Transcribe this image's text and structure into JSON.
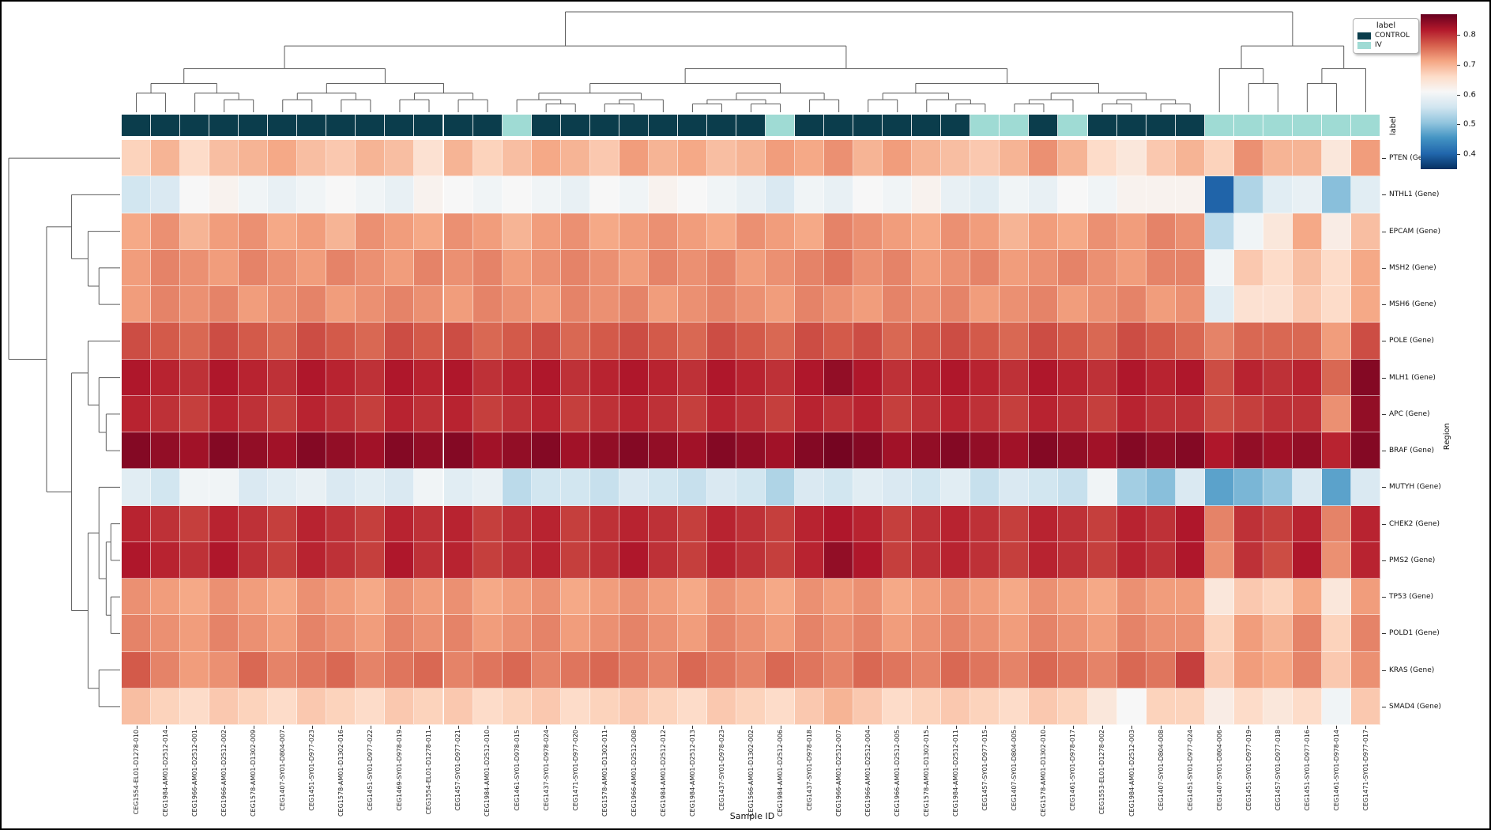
{
  "axes": {
    "x_label": "Sample ID",
    "y_label": "Region",
    "col_strip_label": "label"
  },
  "legend": {
    "title": "label",
    "entries": [
      {
        "label": "CONTROL",
        "color": "#0b3d4c"
      },
      {
        "label": "IV",
        "color": "#9fdbd4"
      }
    ]
  },
  "colorbar": {
    "colormap": "RdBu_r",
    "vmin": 0.35,
    "vmax": 0.87,
    "tick_values": [
      0.8,
      0.7,
      0.6,
      0.5,
      0.4
    ],
    "tick_labels": [
      "0.8",
      "0.7",
      "0.6",
      "0.5",
      "0.4"
    ]
  },
  "chart_data": {
    "type": "heatmap",
    "title": "",
    "xlabel": "Sample ID",
    "ylabel": "Region",
    "colormap": "RdBu_r",
    "vmin": 0.35,
    "vmax": 0.87,
    "group_colors": {
      "CONTROL": "#0b3d4c",
      "IV": "#9fdbd4"
    },
    "x_categories": [
      "CEG1554-EL01-D1278-010",
      "CEG1984-AM01-D2512-014",
      "CEG1966-AM01-D2512-001",
      "CEG1966-AM01-D2512-002",
      "CEG1578-AM01-D1302-009",
      "CEG1407-SY01-D804-007",
      "CEG1451-SY01-D977-023",
      "CEG1578-AM01-D1302-016",
      "CEG1451-SY01-D977-022",
      "CEG1469-SY01-D978-019",
      "CEG1554-EL01-D1278-011",
      "CEG1457-SY01-D977-021",
      "CEG1984-AM01-D2512-010",
      "CEG1461-SY01-D978-015",
      "CEG1437-SY01-D978-024",
      "CEG1471-SY01-D977-020",
      "CEG1578-AM01-D1302-011",
      "CEG1966-AM01-D2512-008",
      "CEG1984-AM01-D2512-012",
      "CEG1984-AM01-D2512-013",
      "CEG1437-SY01-D978-023",
      "CEG1566-AM01-D1302-002",
      "CEG1984-AM01-D2512-006",
      "CEG1437-SY01-D978-018",
      "CEG1966-AM01-D2512-007",
      "CEG1966-AM01-D2512-004",
      "CEG1966-AM01-D2512-005",
      "CEG1578-AM01-D1302-015",
      "CEG1984-AM01-D2512-011",
      "CEG1457-SY01-D977-015",
      "CEG1407-SY01-D804-005",
      "CEG1578-AM01-D1302-010",
      "CEG1461-SY01-D978-017",
      "CEG1553-EL01-D1278-002",
      "CEG1984-AM01-D2512-003",
      "CEG1407-SY01-D804-008",
      "CEG1451-SY01-D977-024",
      "CEG1407-SY01-D804-006",
      "CEG1451-SY01-D977-019",
      "CEG1457-SY01-D977-018",
      "CEG1451-SY01-D977-016",
      "CEG1461-SY01-D978-014",
      "CEG1471-SY01-D977-017"
    ],
    "y_categories": [
      "PTEN (Gene)",
      "NTHL1 (Gene)",
      "EPCAM (Gene)",
      "MSH2 (Gene)",
      "MSH6 (Gene)",
      "POLE (Gene)",
      "MLH1 (Gene)",
      "APC (Gene)",
      "BRAF (Gene)",
      "MUTYH (Gene)",
      "CHEK2 (Gene)",
      "PMS2 (Gene)",
      "TP53 (Gene)",
      "POLD1 (Gene)",
      "KRAS (Gene)",
      "SMAD4 (Gene)"
    ],
    "col_groups": [
      "CONTROL",
      "CONTROL",
      "CONTROL",
      "CONTROL",
      "CONTROL",
      "CONTROL",
      "CONTROL",
      "CONTROL",
      "CONTROL",
      "CONTROL",
      "CONTROL",
      "CONTROL",
      "CONTROL",
      "IV",
      "CONTROL",
      "CONTROL",
      "CONTROL",
      "CONTROL",
      "CONTROL",
      "CONTROL",
      "CONTROL",
      "CONTROL",
      "IV",
      "CONTROL",
      "CONTROL",
      "CONTROL",
      "CONTROL",
      "CONTROL",
      "CONTROL",
      "IV",
      "IV",
      "CONTROL",
      "IV",
      "CONTROL",
      "CONTROL",
      "CONTROL",
      "CONTROL",
      "IV",
      "IV",
      "IV",
      "IV",
      "IV",
      "IV"
    ],
    "values": [
      [
        0.67,
        0.7,
        0.66,
        0.69,
        0.7,
        0.71,
        0.69,
        0.68,
        0.7,
        0.69,
        0.65,
        0.7,
        0.67,
        0.69,
        0.71,
        0.7,
        0.68,
        0.72,
        0.7,
        0.71,
        0.69,
        0.7,
        0.72,
        0.71,
        0.73,
        0.7,
        0.72,
        0.7,
        0.69,
        0.68,
        0.7,
        0.73,
        0.7,
        0.66,
        0.64,
        0.68,
        0.7,
        0.67,
        0.73,
        0.7,
        0.7,
        0.64,
        0.72
      ],
      [
        0.56,
        0.57,
        0.61,
        0.62,
        0.6,
        0.59,
        0.6,
        0.61,
        0.6,
        0.59,
        0.62,
        0.61,
        0.6,
        0.61,
        0.6,
        0.59,
        0.61,
        0.6,
        0.62,
        0.61,
        0.6,
        0.59,
        0.57,
        0.6,
        0.59,
        0.61,
        0.6,
        0.62,
        0.59,
        0.58,
        0.6,
        0.59,
        0.61,
        0.6,
        0.62,
        0.62,
        0.62,
        0.4,
        0.53,
        0.58,
        0.59,
        0.5,
        0.58
      ],
      [
        0.71,
        0.73,
        0.7,
        0.72,
        0.73,
        0.71,
        0.72,
        0.7,
        0.73,
        0.72,
        0.71,
        0.73,
        0.72,
        0.7,
        0.72,
        0.73,
        0.71,
        0.72,
        0.73,
        0.72,
        0.71,
        0.73,
        0.72,
        0.71,
        0.74,
        0.73,
        0.72,
        0.71,
        0.73,
        0.72,
        0.7,
        0.72,
        0.71,
        0.73,
        0.72,
        0.74,
        0.73,
        0.54,
        0.6,
        0.64,
        0.71,
        0.63,
        0.69
      ],
      [
        0.72,
        0.74,
        0.73,
        0.72,
        0.74,
        0.73,
        0.72,
        0.74,
        0.73,
        0.72,
        0.74,
        0.73,
        0.74,
        0.72,
        0.73,
        0.74,
        0.73,
        0.72,
        0.74,
        0.73,
        0.74,
        0.72,
        0.73,
        0.74,
        0.75,
        0.73,
        0.74,
        0.72,
        0.73,
        0.74,
        0.72,
        0.73,
        0.74,
        0.73,
        0.72,
        0.74,
        0.74,
        0.6,
        0.68,
        0.66,
        0.69,
        0.66,
        0.71
      ],
      [
        0.72,
        0.74,
        0.73,
        0.74,
        0.72,
        0.73,
        0.74,
        0.72,
        0.73,
        0.74,
        0.73,
        0.72,
        0.74,
        0.73,
        0.72,
        0.74,
        0.73,
        0.74,
        0.72,
        0.73,
        0.74,
        0.73,
        0.72,
        0.74,
        0.73,
        0.72,
        0.74,
        0.73,
        0.74,
        0.72,
        0.73,
        0.74,
        0.72,
        0.73,
        0.74,
        0.72,
        0.73,
        0.58,
        0.65,
        0.65,
        0.68,
        0.66,
        0.71
      ],
      [
        0.78,
        0.77,
        0.76,
        0.78,
        0.77,
        0.76,
        0.78,
        0.77,
        0.76,
        0.78,
        0.77,
        0.78,
        0.76,
        0.77,
        0.78,
        0.76,
        0.77,
        0.78,
        0.77,
        0.76,
        0.78,
        0.77,
        0.76,
        0.78,
        0.77,
        0.78,
        0.76,
        0.77,
        0.78,
        0.77,
        0.76,
        0.78,
        0.77,
        0.76,
        0.78,
        0.77,
        0.76,
        0.74,
        0.76,
        0.76,
        0.76,
        0.72,
        0.78
      ],
      [
        0.82,
        0.81,
        0.8,
        0.82,
        0.81,
        0.8,
        0.82,
        0.81,
        0.8,
        0.82,
        0.81,
        0.82,
        0.8,
        0.81,
        0.82,
        0.8,
        0.81,
        0.82,
        0.81,
        0.8,
        0.82,
        0.81,
        0.8,
        0.82,
        0.84,
        0.82,
        0.8,
        0.81,
        0.82,
        0.81,
        0.8,
        0.82,
        0.81,
        0.8,
        0.82,
        0.81,
        0.82,
        0.78,
        0.81,
        0.8,
        0.81,
        0.76,
        0.85
      ],
      [
        0.81,
        0.8,
        0.79,
        0.81,
        0.8,
        0.79,
        0.81,
        0.8,
        0.79,
        0.81,
        0.8,
        0.81,
        0.79,
        0.8,
        0.81,
        0.79,
        0.8,
        0.81,
        0.8,
        0.79,
        0.81,
        0.8,
        0.79,
        0.81,
        0.8,
        0.81,
        0.79,
        0.8,
        0.81,
        0.8,
        0.79,
        0.81,
        0.8,
        0.79,
        0.81,
        0.8,
        0.8,
        0.78,
        0.79,
        0.8,
        0.8,
        0.73,
        0.84
      ],
      [
        0.85,
        0.84,
        0.83,
        0.85,
        0.84,
        0.83,
        0.85,
        0.84,
        0.83,
        0.85,
        0.84,
        0.85,
        0.83,
        0.84,
        0.85,
        0.83,
        0.84,
        0.85,
        0.84,
        0.83,
        0.85,
        0.84,
        0.83,
        0.85,
        0.86,
        0.85,
        0.83,
        0.84,
        0.85,
        0.84,
        0.83,
        0.85,
        0.84,
        0.83,
        0.85,
        0.84,
        0.85,
        0.82,
        0.84,
        0.83,
        0.84,
        0.81,
        0.85
      ],
      [
        0.58,
        0.56,
        0.6,
        0.6,
        0.57,
        0.58,
        0.59,
        0.57,
        0.58,
        0.57,
        0.6,
        0.58,
        0.59,
        0.54,
        0.56,
        0.56,
        0.55,
        0.57,
        0.56,
        0.55,
        0.57,
        0.56,
        0.53,
        0.57,
        0.56,
        0.58,
        0.57,
        0.56,
        0.58,
        0.55,
        0.57,
        0.56,
        0.55,
        0.6,
        0.52,
        0.5,
        0.57,
        0.47,
        0.49,
        0.51,
        0.57,
        0.47,
        0.57
      ],
      [
        0.81,
        0.8,
        0.79,
        0.81,
        0.8,
        0.79,
        0.81,
        0.8,
        0.79,
        0.81,
        0.8,
        0.81,
        0.79,
        0.8,
        0.81,
        0.79,
        0.8,
        0.81,
        0.8,
        0.79,
        0.81,
        0.8,
        0.79,
        0.81,
        0.82,
        0.81,
        0.79,
        0.8,
        0.81,
        0.8,
        0.79,
        0.81,
        0.8,
        0.79,
        0.81,
        0.8,
        0.82,
        0.74,
        0.8,
        0.79,
        0.81,
        0.74,
        0.81
      ],
      [
        0.82,
        0.81,
        0.8,
        0.82,
        0.8,
        0.79,
        0.81,
        0.8,
        0.79,
        0.82,
        0.8,
        0.81,
        0.79,
        0.8,
        0.81,
        0.79,
        0.8,
        0.82,
        0.8,
        0.79,
        0.81,
        0.8,
        0.79,
        0.81,
        0.84,
        0.82,
        0.79,
        0.8,
        0.81,
        0.8,
        0.79,
        0.81,
        0.8,
        0.79,
        0.81,
        0.8,
        0.82,
        0.73,
        0.8,
        0.78,
        0.82,
        0.73,
        0.81
      ],
      [
        0.73,
        0.72,
        0.71,
        0.73,
        0.72,
        0.71,
        0.73,
        0.72,
        0.71,
        0.73,
        0.72,
        0.73,
        0.71,
        0.72,
        0.73,
        0.71,
        0.72,
        0.73,
        0.72,
        0.71,
        0.73,
        0.72,
        0.71,
        0.73,
        0.72,
        0.73,
        0.71,
        0.72,
        0.73,
        0.72,
        0.71,
        0.73,
        0.72,
        0.71,
        0.73,
        0.72,
        0.72,
        0.64,
        0.68,
        0.67,
        0.71,
        0.64,
        0.72
      ],
      [
        0.74,
        0.73,
        0.72,
        0.74,
        0.73,
        0.72,
        0.74,
        0.73,
        0.72,
        0.74,
        0.73,
        0.74,
        0.72,
        0.73,
        0.74,
        0.72,
        0.73,
        0.74,
        0.73,
        0.72,
        0.74,
        0.73,
        0.72,
        0.74,
        0.73,
        0.74,
        0.72,
        0.73,
        0.74,
        0.73,
        0.72,
        0.74,
        0.73,
        0.72,
        0.74,
        0.73,
        0.73,
        0.67,
        0.72,
        0.7,
        0.74,
        0.67,
        0.74
      ],
      [
        0.77,
        0.74,
        0.72,
        0.73,
        0.76,
        0.74,
        0.75,
        0.76,
        0.74,
        0.75,
        0.76,
        0.74,
        0.75,
        0.76,
        0.74,
        0.75,
        0.76,
        0.75,
        0.74,
        0.76,
        0.75,
        0.74,
        0.76,
        0.75,
        0.74,
        0.76,
        0.75,
        0.74,
        0.76,
        0.75,
        0.74,
        0.76,
        0.75,
        0.74,
        0.76,
        0.75,
        0.79,
        0.68,
        0.72,
        0.71,
        0.74,
        0.68,
        0.73
      ],
      [
        0.69,
        0.67,
        0.66,
        0.68,
        0.67,
        0.66,
        0.68,
        0.67,
        0.66,
        0.68,
        0.67,
        0.68,
        0.66,
        0.67,
        0.68,
        0.66,
        0.67,
        0.68,
        0.67,
        0.66,
        0.68,
        0.67,
        0.66,
        0.68,
        0.7,
        0.68,
        0.66,
        0.67,
        0.68,
        0.67,
        0.66,
        0.68,
        0.67,
        0.64,
        0.61,
        0.67,
        0.67,
        0.63,
        0.66,
        0.64,
        0.66,
        0.6,
        0.68
      ]
    ],
    "col_dendrogram": [
      [
        [
          [
            [
              0,
              1
            ],
            [
              2,
              [
                3,
                4
              ]
            ]
          ],
          [
            [
              [
                5,
                6
              ],
              [
                7,
                8
              ]
            ],
            [
              [
                9,
                10
              ],
              [
                11,
                12
              ]
            ]
          ]
        ],
        [
          [
            [
              [
                13,
                [
                  14,
                  15
                ]
              ],
              [
                [
                  16,
                  17
                ],
                18
              ]
            ],
            [
              [
                [
                  19,
                  20
                ],
                [
                  21,
                  22
                ]
              ],
              [
                23,
                24
              ]
            ]
          ],
          [
            [
              [
                25,
                26
              ],
              [
                27,
                [
                  28,
                  29
                ]
              ]
            ],
            [
              [
                [
                  30,
                  31
                ],
                32
              ],
              [
                [
                  33,
                  34
                ],
                [
                  35,
                  36
                ]
              ]
            ]
          ]
        ]
      ],
      [
        [
          37,
          [
            38,
            39
          ]
        ],
        [
          [
            40,
            41
          ],
          42
        ]
      ]
    ],
    "row_dendrogram": [
      0,
      [
        [
          1,
          [
            2,
            [
              3,
              4
            ]
          ]
        ],
        [
          [
            5,
            [
              6,
              [
                7,
                8
              ]
            ]
          ],
          [
            [
              9,
              [
                [
                  10,
                  11
                ],
                [
                  12,
                  13
                ]
              ]
            ],
            [
              14,
              15
            ]
          ]
        ]
      ]
    ]
  }
}
